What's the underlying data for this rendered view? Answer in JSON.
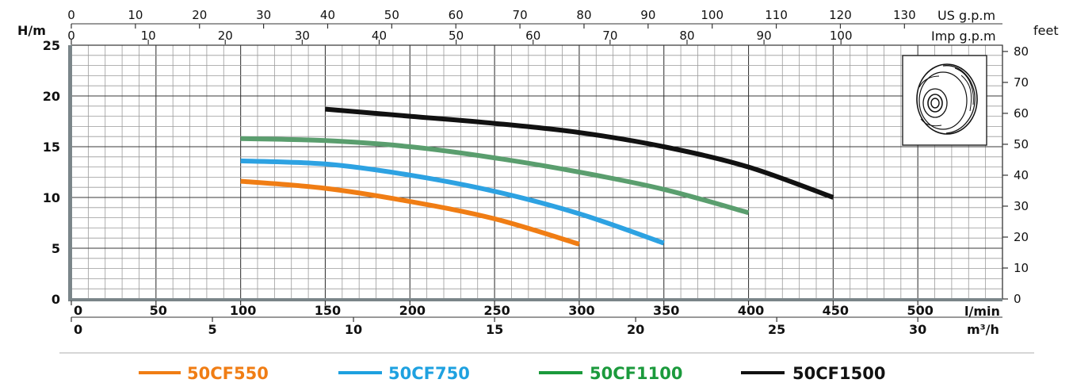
{
  "chart_data": {
    "type": "line",
    "axes": {
      "left": {
        "title": "H/m",
        "ticks": [
          0,
          5,
          10,
          15,
          20,
          25
        ],
        "range": [
          0,
          25
        ]
      },
      "right": {
        "title": "feet",
        "ticks": [
          0,
          10,
          20,
          30,
          40,
          50,
          60,
          70,
          80
        ]
      },
      "bottom_primary": {
        "title": "l/min",
        "ticks": [
          0,
          50,
          100,
          150,
          200,
          250,
          300,
          350,
          400,
          450,
          500
        ],
        "range": [
          0,
          550
        ]
      },
      "bottom_secondary": {
        "title": "m³/h",
        "ticks": [
          0,
          5,
          10,
          15,
          20,
          25,
          30
        ]
      },
      "top_us": {
        "title": "US g.p.m",
        "ticks": [
          0,
          10,
          20,
          30,
          40,
          50,
          60,
          70,
          80,
          90,
          100,
          110,
          120,
          130
        ]
      },
      "top_imp": {
        "title": "Imp g.p.m",
        "ticks": [
          0,
          10,
          20,
          30,
          40,
          50,
          60,
          70,
          80,
          90,
          100
        ]
      }
    },
    "grid": true,
    "legend_position": "bottom",
    "series": [
      {
        "name": "50CF550",
        "color": "#f07d14",
        "x": [
          100,
          150,
          200,
          250,
          300
        ],
        "y": [
          11.6,
          10.9,
          9.6,
          7.9,
          5.4
        ]
      },
      {
        "name": "50CF750",
        "color": "#2da2e2",
        "x": [
          100,
          150,
          200,
          250,
          300,
          350
        ],
        "y": [
          13.6,
          13.3,
          12.2,
          10.6,
          8.4,
          5.5
        ]
      },
      {
        "name": "50CF1100",
        "color": "#5a9e6e",
        "x": [
          100,
          150,
          200,
          250,
          300,
          350,
          400
        ],
        "y": [
          15.8,
          15.6,
          15.0,
          13.9,
          12.5,
          10.8,
          8.5
        ]
      },
      {
        "name": "50CF1500",
        "color": "#111111",
        "x": [
          150,
          200,
          250,
          300,
          350,
          400,
          450
        ],
        "y": [
          18.7,
          18.0,
          17.3,
          16.4,
          15.0,
          13.0,
          10.0
        ]
      }
    ]
  },
  "legend": [
    {
      "label": "50CF550",
      "color": "#f07d14"
    },
    {
      "label": "50CF750",
      "color": "#1ea1e0"
    },
    {
      "label": "50CF1100",
      "color": "#1b9a3c"
    },
    {
      "label": "50CF1500",
      "color": "#111111"
    }
  ],
  "inset": {
    "icon": "impeller-icon"
  }
}
